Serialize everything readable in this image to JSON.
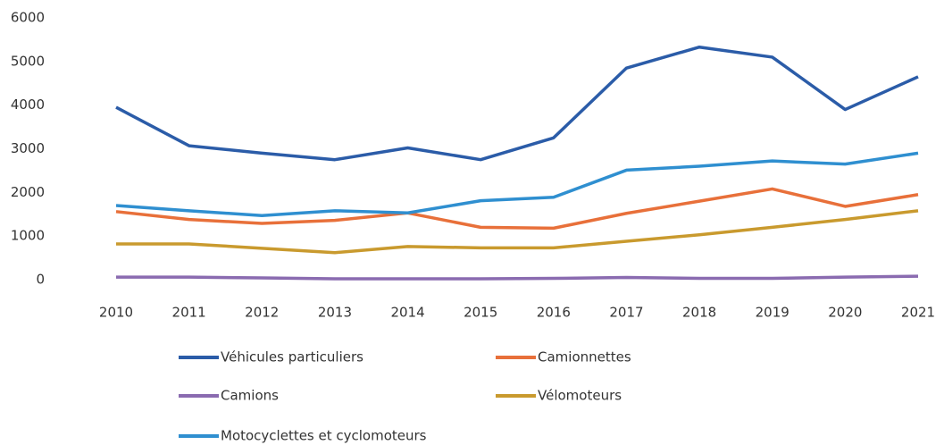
{
  "chart_data": {
    "type": "line",
    "categories": [
      "2010",
      "2011",
      "2012",
      "2013",
      "2014",
      "2015",
      "2016",
      "2017",
      "2018",
      "2019",
      "2020",
      "2021"
    ],
    "series": [
      {
        "name": "Véhicules particuliers",
        "color": "#2b5ca8",
        "values": [
          3950,
          3070,
          2900,
          2750,
          3020,
          2750,
          3250,
          4850,
          5330,
          5100,
          3900,
          4650
        ]
      },
      {
        "name": "Camionnettes",
        "color": "#e8703a",
        "values": [
          1560,
          1380,
          1290,
          1360,
          1530,
          1200,
          1180,
          1520,
          1800,
          2080,
          1680,
          1950
        ]
      },
      {
        "name": "Camions",
        "color": "#8a6bb0",
        "values": [
          60,
          60,
          40,
          20,
          20,
          20,
          30,
          50,
          30,
          30,
          60,
          80
        ]
      },
      {
        "name": "Vélomoteurs",
        "color": "#c99a2e",
        "values": [
          820,
          820,
          720,
          620,
          760,
          730,
          730,
          880,
          1030,
          1200,
          1380,
          1580
        ]
      },
      {
        "name": "Motocyclettes et cyclomoteurs",
        "color": "#2f8fd0",
        "values": [
          1700,
          1580,
          1470,
          1580,
          1530,
          1810,
          1890,
          2510,
          2600,
          2720,
          2650,
          2900
        ]
      }
    ],
    "ylim": [
      0,
      6000
    ],
    "yticks": [
      0,
      1000,
      2000,
      3000,
      4000,
      5000,
      6000
    ],
    "grid": false
  }
}
